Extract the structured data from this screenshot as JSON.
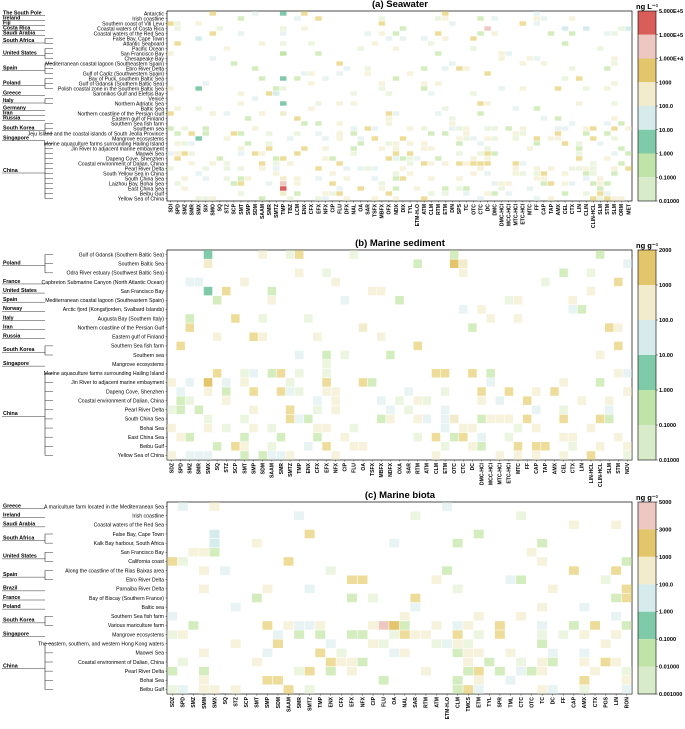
{
  "chart_data": [
    {
      "type": "heatmap",
      "title": "(a) Seawater",
      "unit": "ng L⁻¹",
      "colorbar_ticks": [
        "5.000E+5",
        "1.000E+5",
        "1.000E+4",
        "1000",
        "100.0",
        "10.00",
        "1.000",
        "0.1000",
        "0.01000"
      ],
      "rows": [
        "Antarctic",
        "Irish coastline",
        "Southern coast of Viti Levu",
        "Coastal waters of Costa Rica",
        "Coastal waters of the Red Sea",
        "False Bay, Cape Town",
        "Atlantic Seaboard",
        "Pacific Ocean",
        "San Francisco Bay",
        "Chesapeake Bay",
        "Mediterranean coastal lagoon (Southeastern Spain)",
        "Ebro River Delta",
        "Gulf of Cadiz (Southwestern Spain)",
        "Bay of Puck, southern Baltic Sea",
        "Gulf of Gdansk (Southern Baltic Sea)",
        "Polish coastal zone in the Southern Baltic Sea",
        "Saronikos Gulf and Elefsis Bay",
        "Venice",
        "Northern Adriatic Sea",
        "Baltic Sea",
        "Northern coastline of the Persian Gulf",
        "Eastern gulf of Finland",
        "Southern Sea fish farm",
        "Southern sea",
        "Jeju Island and the coastal islands of South Jeolla Province",
        "Mangrove ecosystems",
        "Marine aquaculture farms surrounding Hailing Island",
        "Jin River to adjacent marine embayment",
        "Maowei Sea",
        "Dapeng Cove, Shenzhen",
        "Coastal environment of Dalian, China",
        "Pearl River Delta",
        "South Yellow Sea in China",
        "South China Sea",
        "Laizhou Bay, Bohai Sea",
        "East China Sea",
        "Beibu Gulf",
        "Yellow Sea of China"
      ],
      "countries": [
        {
          "name": "The South Pole",
          "first": 0,
          "last": 0
        },
        {
          "name": "Ireland",
          "first": 1,
          "last": 1
        },
        {
          "name": "Fiji",
          "first": 2,
          "last": 2
        },
        {
          "name": "Costa Rica",
          "first": 3,
          "last": 3
        },
        {
          "name": "Saudi Arabia",
          "first": 4,
          "last": 4
        },
        {
          "name": "South Africa",
          "first": 5,
          "last": 6
        },
        {
          "name": "United States",
          "first": 7,
          "last": 9
        },
        {
          "name": "Spain",
          "first": 10,
          "last": 12
        },
        {
          "name": "Poland",
          "first": 13,
          "last": 15
        },
        {
          "name": "Greece",
          "first": 16,
          "last": 16
        },
        {
          "name": "Italy",
          "first": 17,
          "last": 18
        },
        {
          "name": "Germany",
          "first": 19,
          "last": 19
        },
        {
          "name": "Iran",
          "first": 20,
          "last": 20
        },
        {
          "name": "Russia",
          "first": 21,
          "last": 21
        },
        {
          "name": "South Korea",
          "first": 22,
          "last": 24
        },
        {
          "name": "Singapore",
          "first": 25,
          "last": 25
        },
        {
          "name": "China",
          "first": 26,
          "last": 37
        }
      ],
      "columns": [
        "SDI",
        "SPD",
        "SMZ",
        "SMR",
        "SMX",
        "SIX",
        "SMO",
        "SQ",
        "STZ",
        "SCP",
        "SMT",
        "SMP",
        "SDM",
        "SAAM",
        "SMR",
        "SMTZ",
        "TMP",
        "TBZ",
        "LCM",
        "ENX",
        "CFX",
        "EFX",
        "NFX",
        "CIP",
        "FLU",
        "DFX",
        "NAL",
        "OA",
        "SAR",
        "TSFX",
        "MBFX",
        "OFX",
        "NDX",
        "DIX",
        "TYL",
        "ETM-H₂O",
        "ATM",
        "CLM",
        "RTM",
        "ETM",
        "DIN",
        "SPS",
        "TC",
        "OTC",
        "CTC",
        "DC",
        "DMC",
        "DMC-HCI",
        "MCC-HCI",
        "MTC-HCI",
        "ETC-HCI",
        "MTC",
        "FF",
        "CAP",
        "TAP",
        "AMX",
        "CEL",
        "CTX",
        "LIN",
        "CLIN",
        "CLIN-HCL",
        "SLM",
        "STM",
        "SLM",
        "ORM",
        "MET"
      ],
      "nonzero_cells": [
        {
          "row": 0,
          "col": 16,
          "bin": 2
        },
        {
          "row": 3,
          "col": 45,
          "bin": 6
        },
        {
          "row": 3,
          "col": 56,
          "bin": 3
        },
        {
          "row": 3,
          "col": 59,
          "bin": 3
        },
        {
          "row": 3,
          "col": 65,
          "bin": 3
        },
        {
          "row": 5,
          "col": 4,
          "bin": 3
        },
        {
          "row": 8,
          "col": 16,
          "bin": 1
        },
        {
          "row": 13,
          "col": 16,
          "bin": 2
        },
        {
          "row": 15,
          "col": 4,
          "bin": 2
        },
        {
          "row": 16,
          "col": 15,
          "bin": 3
        },
        {
          "row": 18,
          "col": 16,
          "bin": 2
        },
        {
          "row": 20,
          "col": 16,
          "bin": 4
        },
        {
          "row": 25,
          "col": 4,
          "bin": 2
        },
        {
          "row": 33,
          "col": 16,
          "bin": 4
        },
        {
          "row": 34,
          "col": 16,
          "bin": 6
        },
        {
          "row": 35,
          "col": 16,
          "bin": 7
        },
        {
          "row": 36,
          "col": 16,
          "bin": 4
        }
      ]
    },
    {
      "type": "heatmap",
      "title": "(b) Marine sediment",
      "unit": "ng g⁻¹",
      "colorbar_ticks": [
        "2000",
        "1000",
        "100.0",
        "10.00",
        "1.000",
        "0.1000",
        "0.01000"
      ],
      "rows": [
        "Gulf of Gdansk (Southern Baltic Sea)",
        "Southern Baltic Sea",
        "Odra River estuary (Southwest Baltic Sea)",
        "Capbreton Submarine Canyon (North Atlantic Ocean)",
        "San Francisco Bay",
        "Mediterranean coastal lagoon (Southeastern Spain)",
        "Arctic fjord (Kongsfjorden, Svalbard Islands)",
        "Augusta Bay (Southern Italy)",
        "Northern coastline of the Persian Gulf",
        "Eastern gulf of Finland",
        "Southern Sea fish farm",
        "Southern sea",
        "Mangrove ecosystems",
        "Marine aquaculture farms surrounding Hailing Island",
        "Jin River to adjacent marine embayment",
        "Dapeng Cove, Shenzhen",
        "Coastal environment of Dalian, China",
        "Pearl River Delta",
        "South China Sea",
        "Bohai Sea",
        "East China Sea",
        "Beibu Gulf",
        "Yellow Sea of China"
      ],
      "countries": [
        {
          "name": "Poland",
          "first": 0,
          "last": 2
        },
        {
          "name": "France",
          "first": 3,
          "last": 3
        },
        {
          "name": "United States",
          "first": 4,
          "last": 4
        },
        {
          "name": "Spain",
          "first": 5,
          "last": 5
        },
        {
          "name": "Norway",
          "first": 6,
          "last": 6
        },
        {
          "name": "Italy",
          "first": 7,
          "last": 7
        },
        {
          "name": "Iran",
          "first": 8,
          "last": 8
        },
        {
          "name": "Russia",
          "first": 9,
          "last": 9
        },
        {
          "name": "South Korea",
          "first": 10,
          "last": 11
        },
        {
          "name": "Singapore",
          "first": 12,
          "last": 12
        },
        {
          "name": "China",
          "first": 13,
          "last": 22
        }
      ],
      "columns": [
        "SDZ",
        "SPD",
        "SMZ",
        "SMR",
        "SMX",
        "SQ",
        "STZ",
        "SCP",
        "SMT",
        "SMP",
        "SDM",
        "SAAM",
        "SMR",
        "SMTZ",
        "TMP",
        "ENX",
        "CFX",
        "EFX",
        "NFX",
        "CIP",
        "FLU",
        "OA",
        "TSFX",
        "MBFX",
        "NDFX",
        "OXA",
        "SAR",
        "RTM",
        "ATM",
        "CLM",
        "ETM",
        "OTC",
        "CTC",
        "DC",
        "DMC-HCI",
        "MCC-HCI",
        "MTC-HCI",
        "ETC-HCI",
        "MTC",
        "FF",
        "CAP",
        "TAP",
        "AMX",
        "CEL",
        "CTX",
        "LIN",
        "LIN-HCL",
        "CLIN-HCL",
        "SLM",
        "STM",
        "NOV"
      ],
      "nonzero_cells": [
        {
          "row": 0,
          "col": 4,
          "bin": 2
        },
        {
          "row": 1,
          "col": 4,
          "bin": 4
        },
        {
          "row": 1,
          "col": 31,
          "bin": 5
        },
        {
          "row": 1,
          "col": 32,
          "bin": 4
        },
        {
          "row": 4,
          "col": 4,
          "bin": 2
        },
        {
          "row": 8,
          "col": 21,
          "bin": 4
        },
        {
          "row": 14,
          "col": 4,
          "bin": 5
        },
        {
          "row": 18,
          "col": 31,
          "bin": 4
        }
      ]
    },
    {
      "type": "heatmap",
      "title": "(c) Marine biota",
      "unit": "ng g⁻¹",
      "colorbar_ticks": [
        "5000",
        "3000",
        "1000",
        "100.0",
        "1.000",
        "0.1000",
        "0.01000",
        "0.001000"
      ],
      "rows": [
        "A mariculture farm located in the Mediterranean Sea",
        "Irish coastline",
        "Coastal waters of the Red Sea",
        "False Bay, Cape Town",
        "Kalk Bay harbour, South Africa",
        "San Francisco Bay",
        "California coast",
        "Along the coastline of the Rias Baixas area",
        "Ebro River Delta",
        "Parnaiba River Delta",
        "Bay of Biscay (Southern France)",
        "Baltic sea",
        "Southern Sea fish farm",
        "Various mariculture farm",
        "Mangrove ecosystems",
        "The eastern, southern, and western Hong Kong waters",
        "Maowei Sea",
        "Coastal environment of Dalian, China",
        "Pearl River Delta",
        "Bohai Sea",
        "Beibu Gulf"
      ],
      "countries": [
        {
          "name": "Greece",
          "first": 0,
          "last": 0
        },
        {
          "name": "Ireland",
          "first": 1,
          "last": 1
        },
        {
          "name": "Saudi Arabia",
          "first": 2,
          "last": 2
        },
        {
          "name": "South Africa",
          "first": 3,
          "last": 4
        },
        {
          "name": "United States",
          "first": 5,
          "last": 6
        },
        {
          "name": "Spain",
          "first": 7,
          "last": 8
        },
        {
          "name": "Brazil",
          "first": 9,
          "last": 9
        },
        {
          "name": "France",
          "first": 10,
          "last": 10
        },
        {
          "name": "Poland",
          "first": 11,
          "last": 11
        },
        {
          "name": "South Korea",
          "first": 12,
          "last": 13
        },
        {
          "name": "Singapore",
          "first": 14,
          "last": 14
        },
        {
          "name": "China",
          "first": 15,
          "last": 20
        }
      ],
      "columns": [
        "SDZ",
        "SPD",
        "SMZ",
        "SMM",
        "SMX",
        "SQ",
        "STZ",
        "SCP",
        "SMT",
        "SMP",
        "SDM",
        "SAAM",
        "SMR",
        "SMTZ",
        "TMP",
        "ENX",
        "CFX",
        "EFX",
        "NFX",
        "CIP",
        "FLU",
        "OA",
        "NAL",
        "SAR",
        "RTM",
        "ATM",
        "ETM-H₂O",
        "CLM",
        "TMCS",
        "ETM",
        "TYL",
        "SPR",
        "TML",
        "CTC",
        "OTC",
        "TC",
        "DC",
        "FF",
        "CAP",
        "AMX",
        "CTX",
        "PGS",
        "LIN",
        "RON"
      ],
      "nonzero_cells": [
        {
          "row": 3,
          "col": 4,
          "bin": 3
        },
        {
          "row": 4,
          "col": 4,
          "bin": 3
        },
        {
          "row": 13,
          "col": 20,
          "bin": 6
        },
        {
          "row": 13,
          "col": 21,
          "bin": 5
        }
      ]
    }
  ]
}
